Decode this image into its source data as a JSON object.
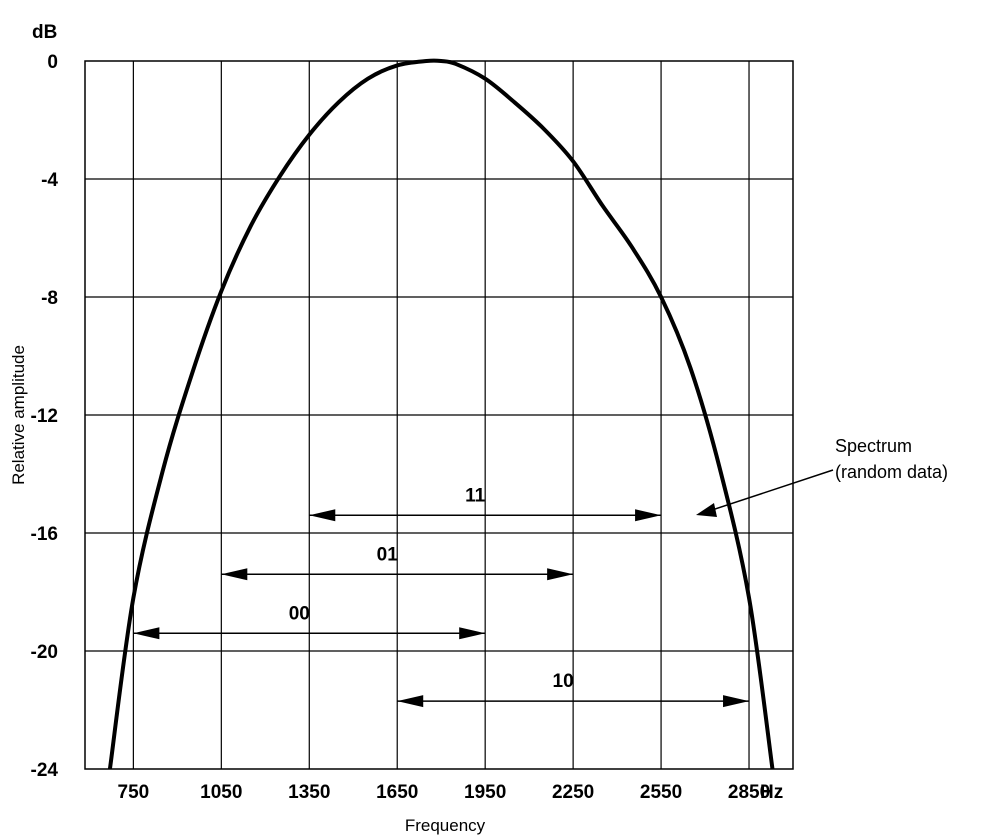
{
  "chart_data": {
    "type": "line",
    "xlabel": "Frequency",
    "ylabel": "Relative amplitude",
    "x_unit": "Hz",
    "y_unit": "dB",
    "xlim": [
      585,
      3000
    ],
    "ylim": [
      -24,
      0
    ],
    "x_ticks": [
      "750",
      "1050",
      "1350",
      "1650",
      "1950",
      "2250",
      "2550",
      "2850"
    ],
    "y_ticks": [
      "0",
      "-4",
      "-8",
      "-12",
      "-16",
      "-20",
      "-24"
    ],
    "grid": true,
    "series": [
      {
        "x": [
          670,
          750,
          850,
          950,
          1050,
          1150,
          1250,
          1350,
          1450,
          1550,
          1650,
          1750,
          1800,
          1850,
          1950,
          2050,
          2150,
          2250,
          2350,
          2450,
          2550,
          2650,
          2750,
          2850,
          2930
        ],
        "y": [
          -24.0,
          -18.2,
          -13.9,
          -10.6,
          -7.8,
          -5.6,
          -3.9,
          -2.5,
          -1.4,
          -0.6,
          -0.15,
          0.0,
          0.0,
          -0.1,
          -0.6,
          -1.4,
          -2.3,
          -3.4,
          -4.9,
          -6.3,
          -8.0,
          -10.4,
          -13.8,
          -18.2,
          -24.0
        ]
      }
    ],
    "bands": [
      {
        "label": "11",
        "start": 1350,
        "end": 2550,
        "level": -15.4
      },
      {
        "label": "01",
        "start": 1050,
        "end": 2250,
        "level": -17.4
      },
      {
        "label": "00",
        "start": 750,
        "end": 1950,
        "level": -19.4
      },
      {
        "label": "10",
        "start": 1650,
        "end": 2850,
        "level": -21.7
      }
    ],
    "annotation": {
      "text_lines": [
        "Spectrum",
        "(random data)"
      ]
    }
  }
}
